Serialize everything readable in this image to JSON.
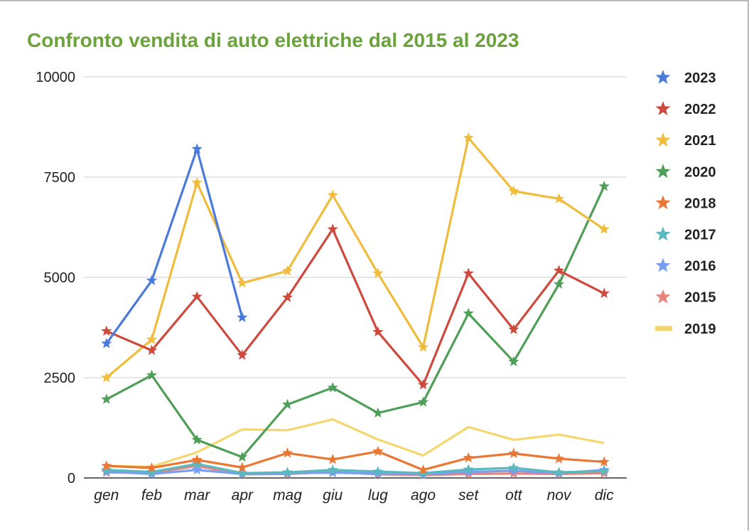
{
  "chart_data": {
    "type": "line",
    "title": "Confronto vendita di auto elettriche dal 2015 al 2023",
    "categories": [
      "gen",
      "feb",
      "mar",
      "apr",
      "mag",
      "giu",
      "lug",
      "ago",
      "set",
      "ott",
      "nov",
      "dic"
    ],
    "ylim": [
      0,
      10000
    ],
    "yticks": [
      0,
      2500,
      5000,
      7500,
      10000
    ],
    "grid": true,
    "legend_position": "right",
    "series": [
      {
        "name": "2023",
        "color": "#4a7bdc",
        "marker": "star",
        "values": [
          3350,
          4920,
          8200,
          4000,
          null,
          null,
          null,
          null,
          null,
          null,
          null,
          null
        ]
      },
      {
        "name": "2022",
        "color": "#cf4a3e",
        "marker": "star",
        "values": [
          3660,
          3180,
          4520,
          3060,
          4500,
          6200,
          3640,
          2320,
          5100,
          3700,
          5170,
          4600
        ]
      },
      {
        "name": "2021",
        "color": "#f0bc3c",
        "marker": "star",
        "values": [
          2500,
          3450,
          7360,
          4860,
          5160,
          7050,
          5100,
          3260,
          8480,
          7150,
          6960,
          6200
        ]
      },
      {
        "name": "2020",
        "color": "#4f9f58",
        "marker": "star",
        "values": [
          1960,
          2560,
          950,
          520,
          1830,
          2250,
          1620,
          1890,
          4100,
          2900,
          4830,
          7270
        ]
      },
      {
        "name": "2018",
        "color": "#ea7733",
        "marker": "star",
        "values": [
          300,
          250,
          450,
          260,
          620,
          460,
          660,
          200,
          500,
          610,
          480,
          400
        ]
      },
      {
        "name": "2017",
        "color": "#5ab9be",
        "marker": "star",
        "values": [
          200,
          150,
          350,
          120,
          140,
          200,
          160,
          120,
          210,
          250,
          140,
          170
        ]
      },
      {
        "name": "2016",
        "color": "#7b9ff0",
        "marker": "star",
        "values": [
          160,
          100,
          200,
          100,
          120,
          130,
          110,
          90,
          150,
          180,
          120,
          200
        ]
      },
      {
        "name": "2015",
        "color": "#e8827a",
        "marker": "star",
        "values": [
          140,
          120,
          300,
          90,
          100,
          150,
          90,
          70,
          100,
          110,
          100,
          120
        ]
      },
      {
        "name": "2019",
        "color": "#f5d76f",
        "marker": "none",
        "values": [
          300,
          280,
          640,
          1210,
          1190,
          1460,
          960,
          560,
          1270,
          950,
          1080,
          870
        ]
      }
    ]
  }
}
